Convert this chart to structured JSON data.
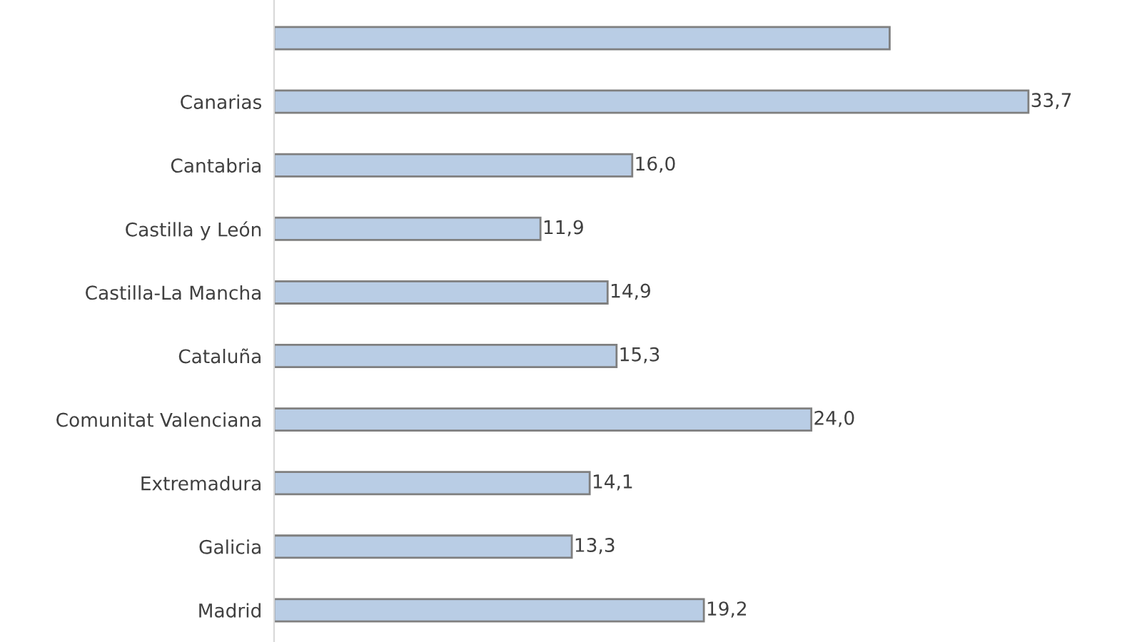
{
  "chart_data": {
    "type": "bar",
    "orientation": "horizontal",
    "categories": [
      null,
      "Canarias",
      "Cantabria",
      "Castilla y León",
      "Castilla-La Mancha",
      "Cataluña",
      "Comunitat Valenciana",
      "Extremadura",
      "Galicia",
      "Madrid"
    ],
    "values": [
      27.5,
      33.7,
      16.0,
      11.9,
      14.9,
      15.3,
      24.0,
      14.1,
      13.3,
      19.2
    ],
    "value_labels": [
      null,
      "33,7",
      "16,0",
      "11,9",
      "14,9",
      "15,3",
      "24,0",
      "14,1",
      "13,3",
      "19,2"
    ],
    "color": "#b9cde5",
    "tick_labels": "y",
    "grid": false,
    "legend": false
  }
}
